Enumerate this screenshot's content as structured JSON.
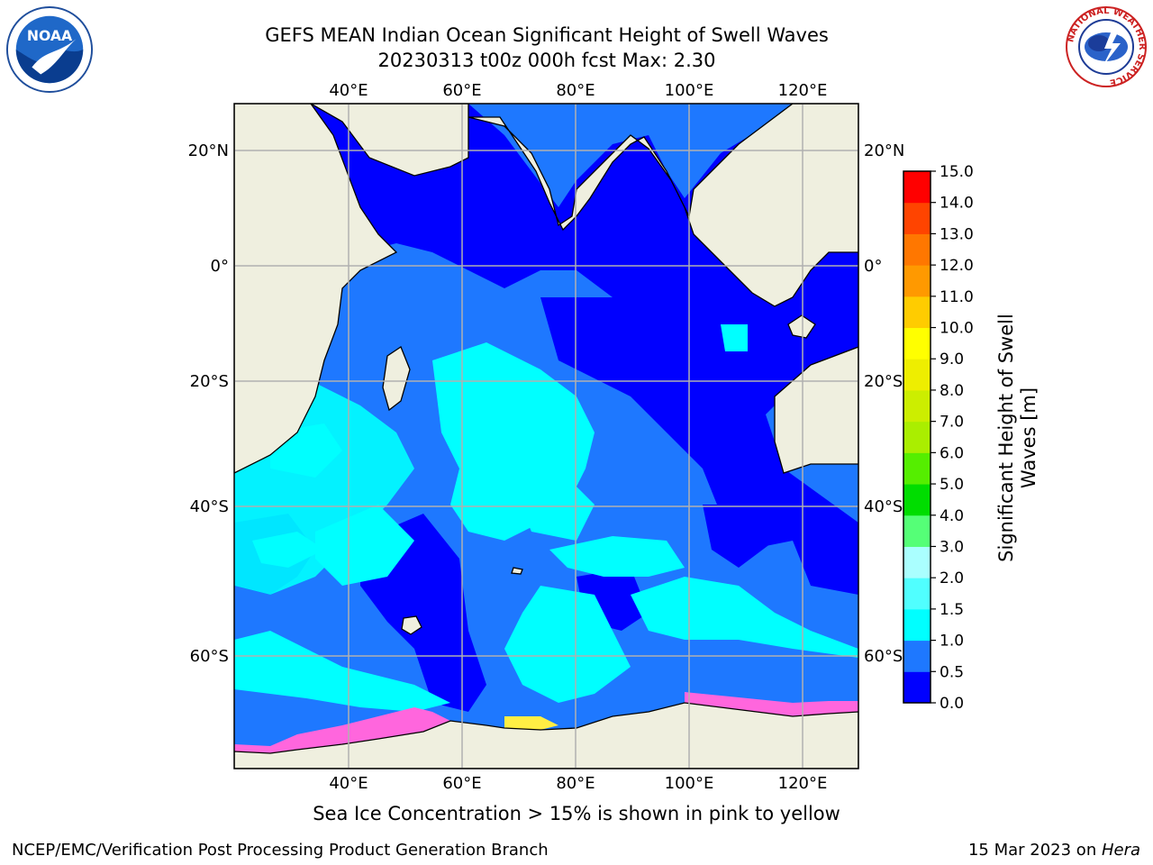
{
  "title_line1": "GEFS MEAN Indian Ocean Significant Height of Swell Waves",
  "title_line2": "20230313 t00z 000h fcst   Max: 2.30",
  "map": {
    "lon_ticks": [
      "40°E",
      "60°E",
      "80°E",
      "100°E",
      "120°E"
    ],
    "lat_ticks": [
      "20°N",
      "0°",
      "20°S",
      "40°S",
      "60°S"
    ],
    "lon_range": [
      20,
      130
    ],
    "lat_range": [
      -74,
      28
    ]
  },
  "colorbar": {
    "label_line1": "Significant Height of Swell",
    "label_line2": "Waves [m]",
    "ticks": [
      "0.0",
      "0.5",
      "1.0",
      "1.5",
      "2.0",
      "3.0",
      "4.0",
      "5.0",
      "6.0",
      "7.0",
      "8.0",
      "9.0",
      "10.0",
      "11.0",
      "12.0",
      "13.0",
      "14.0",
      "15.0"
    ],
    "colors": [
      "#0000ff",
      "#1e78ff",
      "#00ffff",
      "#50ffff",
      "#aaffff",
      "#55ff77",
      "#00dd00",
      "#55ee00",
      "#aaee00",
      "#ccee00",
      "#eeee00",
      "#ffff00",
      "#ffcc00",
      "#ff9900",
      "#ff7700",
      "#ff4400",
      "#ff0000"
    ]
  },
  "palette": {
    "land": "#efefdf",
    "deep": "#0000ff",
    "mid": "#1e78ff",
    "light": "#00ffff",
    "ice_pink": "#ff66dd",
    "ice_yellow": "#ffee44"
  },
  "caption": "Sea Ice Concentration > 15% is shown in pink to yellow",
  "footer_left": "NCEP/EMC/Verification Post Processing Product Generation Branch",
  "footer_right_date": "15 Mar 2023 on ",
  "footer_right_host": "Hera",
  "logos": {
    "noaa_text": "NOAA",
    "nws_text": "NATIONAL WEATHER SERVICE"
  }
}
